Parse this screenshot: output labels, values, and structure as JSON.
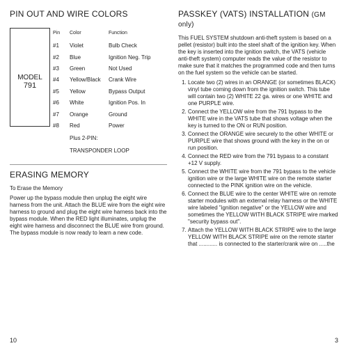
{
  "left": {
    "title1": "PIN OUT AND WIRE COLORS",
    "model_label": "MODEL",
    "model_num": "791",
    "headers": {
      "pin": "Pin",
      "color": "Color",
      "func": "Function"
    },
    "pins": [
      {
        "pin": "#1",
        "color": "Violet",
        "func": "Bulb Check"
      },
      {
        "pin": "#2",
        "color": "Blue",
        "func": "Ignition Neg. Trip"
      },
      {
        "pin": "#3",
        "color": "Green",
        "func": "Not Used"
      },
      {
        "pin": "#4",
        "color": "Yellow/Black",
        "func": "Crank Wire"
      },
      {
        "pin": "#5",
        "color": "Yellow",
        "func": "Bypass Output"
      },
      {
        "pin": "#6",
        "color": "White",
        "func": "Ignition Pos. In"
      },
      {
        "pin": "#7",
        "color": "Orange",
        "func": "Ground"
      },
      {
        "pin": "#8",
        "color": "Red",
        "func": "Power"
      }
    ],
    "extra1": "Plus 2-PIN:",
    "extra2": "TRANSPONDER LOOP",
    "title2": "ERASING MEMORY",
    "erase_h": "To Erase the Memory",
    "erase_p": "Power up the bypass module then unplug the eight wire harness from the unit. Attach the BLUE wire from the eight wire harness to ground and plug the eight wire harness back into the bypass module. When the RED light illuminates, unplug the eight wire harness and disconnect the BLUE wire from ground. The bypass module is now ready to learn a new code.",
    "pagenum": "10"
  },
  "right": {
    "title_a": "PASSKEY (VATS) INSTALLATION ",
    "title_b": "(GM only)",
    "intro": "This FUEL SYSTEM shutdown anti-theft system is based on a pellet (resistor) built into the steel shaft of the ignition key. When the key is inserted into the ignition switch, the VATS (vehicle anti-theft system) computer reads the value of the resistor to make sure that it matches the programmed code and then turns on the fuel system so the vehicle can be started.",
    "steps": [
      "Locate two (2) wires in an ORANGE (or sometimes BLACK) vinyl tube coming down from the ignition switch. This tube will contain two (2) WHITE 22 ga. wires or one WHITE and one PURPLE wire.",
      "Connect the YELLOW wire from the 791 bypass to the WHITE wire in the VATS tube that shows voltage when the key is turned to the ON or RUN position.",
      "Connect the ORANGE wire securely to the other WHITE or PURPLE wire that shows ground with the key in the on or run position.",
      "Connect the RED wire from the 791 bypass to a constant +12 V supply.",
      "Connect the WHITE wire from the 791 bypass to the vehicle ignition wire or the large WHITE wire on the remote starter connected to the PINK ignition wire on the vehicle.",
      "Connect the BLUE wire to the center WHITE wire on remote starter modules with an external relay harness or the WHITE wire labeled \"ignition negative\" or the YELLOW wire and sometimes the YELLOW WITH BLACK STRIPE wire marked \"security bypass out\".",
      "Attach the YELLOW WITH BLACK STRIPE wire to the large YELLOW WITH BLACK STRIPE wire on the remote starter that  ............  is connected to the starter/crank wire on .....the"
    ],
    "pagenum": "3"
  }
}
